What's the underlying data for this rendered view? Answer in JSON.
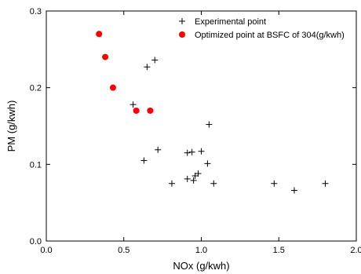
{
  "chart_data": {
    "type": "scatter",
    "title": "",
    "xlabel": "NOx (g/kwh)",
    "ylabel": "PM (g/kwh)",
    "xlim": [
      0.0,
      2.0
    ],
    "ylim": [
      0.0,
      0.3
    ],
    "x_ticks": [
      0.0,
      0.5,
      1.0,
      1.5,
      2.0
    ],
    "x_tick_labels": [
      "0.0",
      "0.5",
      "1.0",
      "1.5",
      "2.0"
    ],
    "y_ticks": [
      0.0,
      0.1,
      0.2,
      0.3
    ],
    "y_tick_labels": [
      "0.0",
      "0.1",
      "0.2",
      "0.3"
    ],
    "grid": false,
    "legend_position": "top-right",
    "series": [
      {
        "name": "Experimental point",
        "marker": "plus",
        "color": "#000000",
        "points": [
          [
            0.65,
            0.227
          ],
          [
            0.7,
            0.236
          ],
          [
            0.56,
            0.178
          ],
          [
            1.05,
            0.152
          ],
          [
            0.72,
            0.119
          ],
          [
            0.63,
            0.105
          ],
          [
            0.91,
            0.115
          ],
          [
            0.94,
            0.116
          ],
          [
            1.0,
            0.117
          ],
          [
            1.04,
            0.101
          ],
          [
            0.98,
            0.088
          ],
          [
            0.96,
            0.085
          ],
          [
            0.91,
            0.081
          ],
          [
            0.95,
            0.079
          ],
          [
            0.81,
            0.075
          ],
          [
            1.08,
            0.075
          ],
          [
            1.47,
            0.075
          ],
          [
            1.6,
            0.066
          ],
          [
            1.8,
            0.075
          ]
        ]
      },
      {
        "name": "Optimized point at BSFC of 304(g/kwh)",
        "marker": "circle",
        "color": "#ff0000",
        "points": [
          [
            0.34,
            0.27
          ],
          [
            0.38,
            0.24
          ],
          [
            0.43,
            0.2
          ],
          [
            0.58,
            0.17
          ],
          [
            0.67,
            0.17
          ]
        ]
      }
    ]
  }
}
